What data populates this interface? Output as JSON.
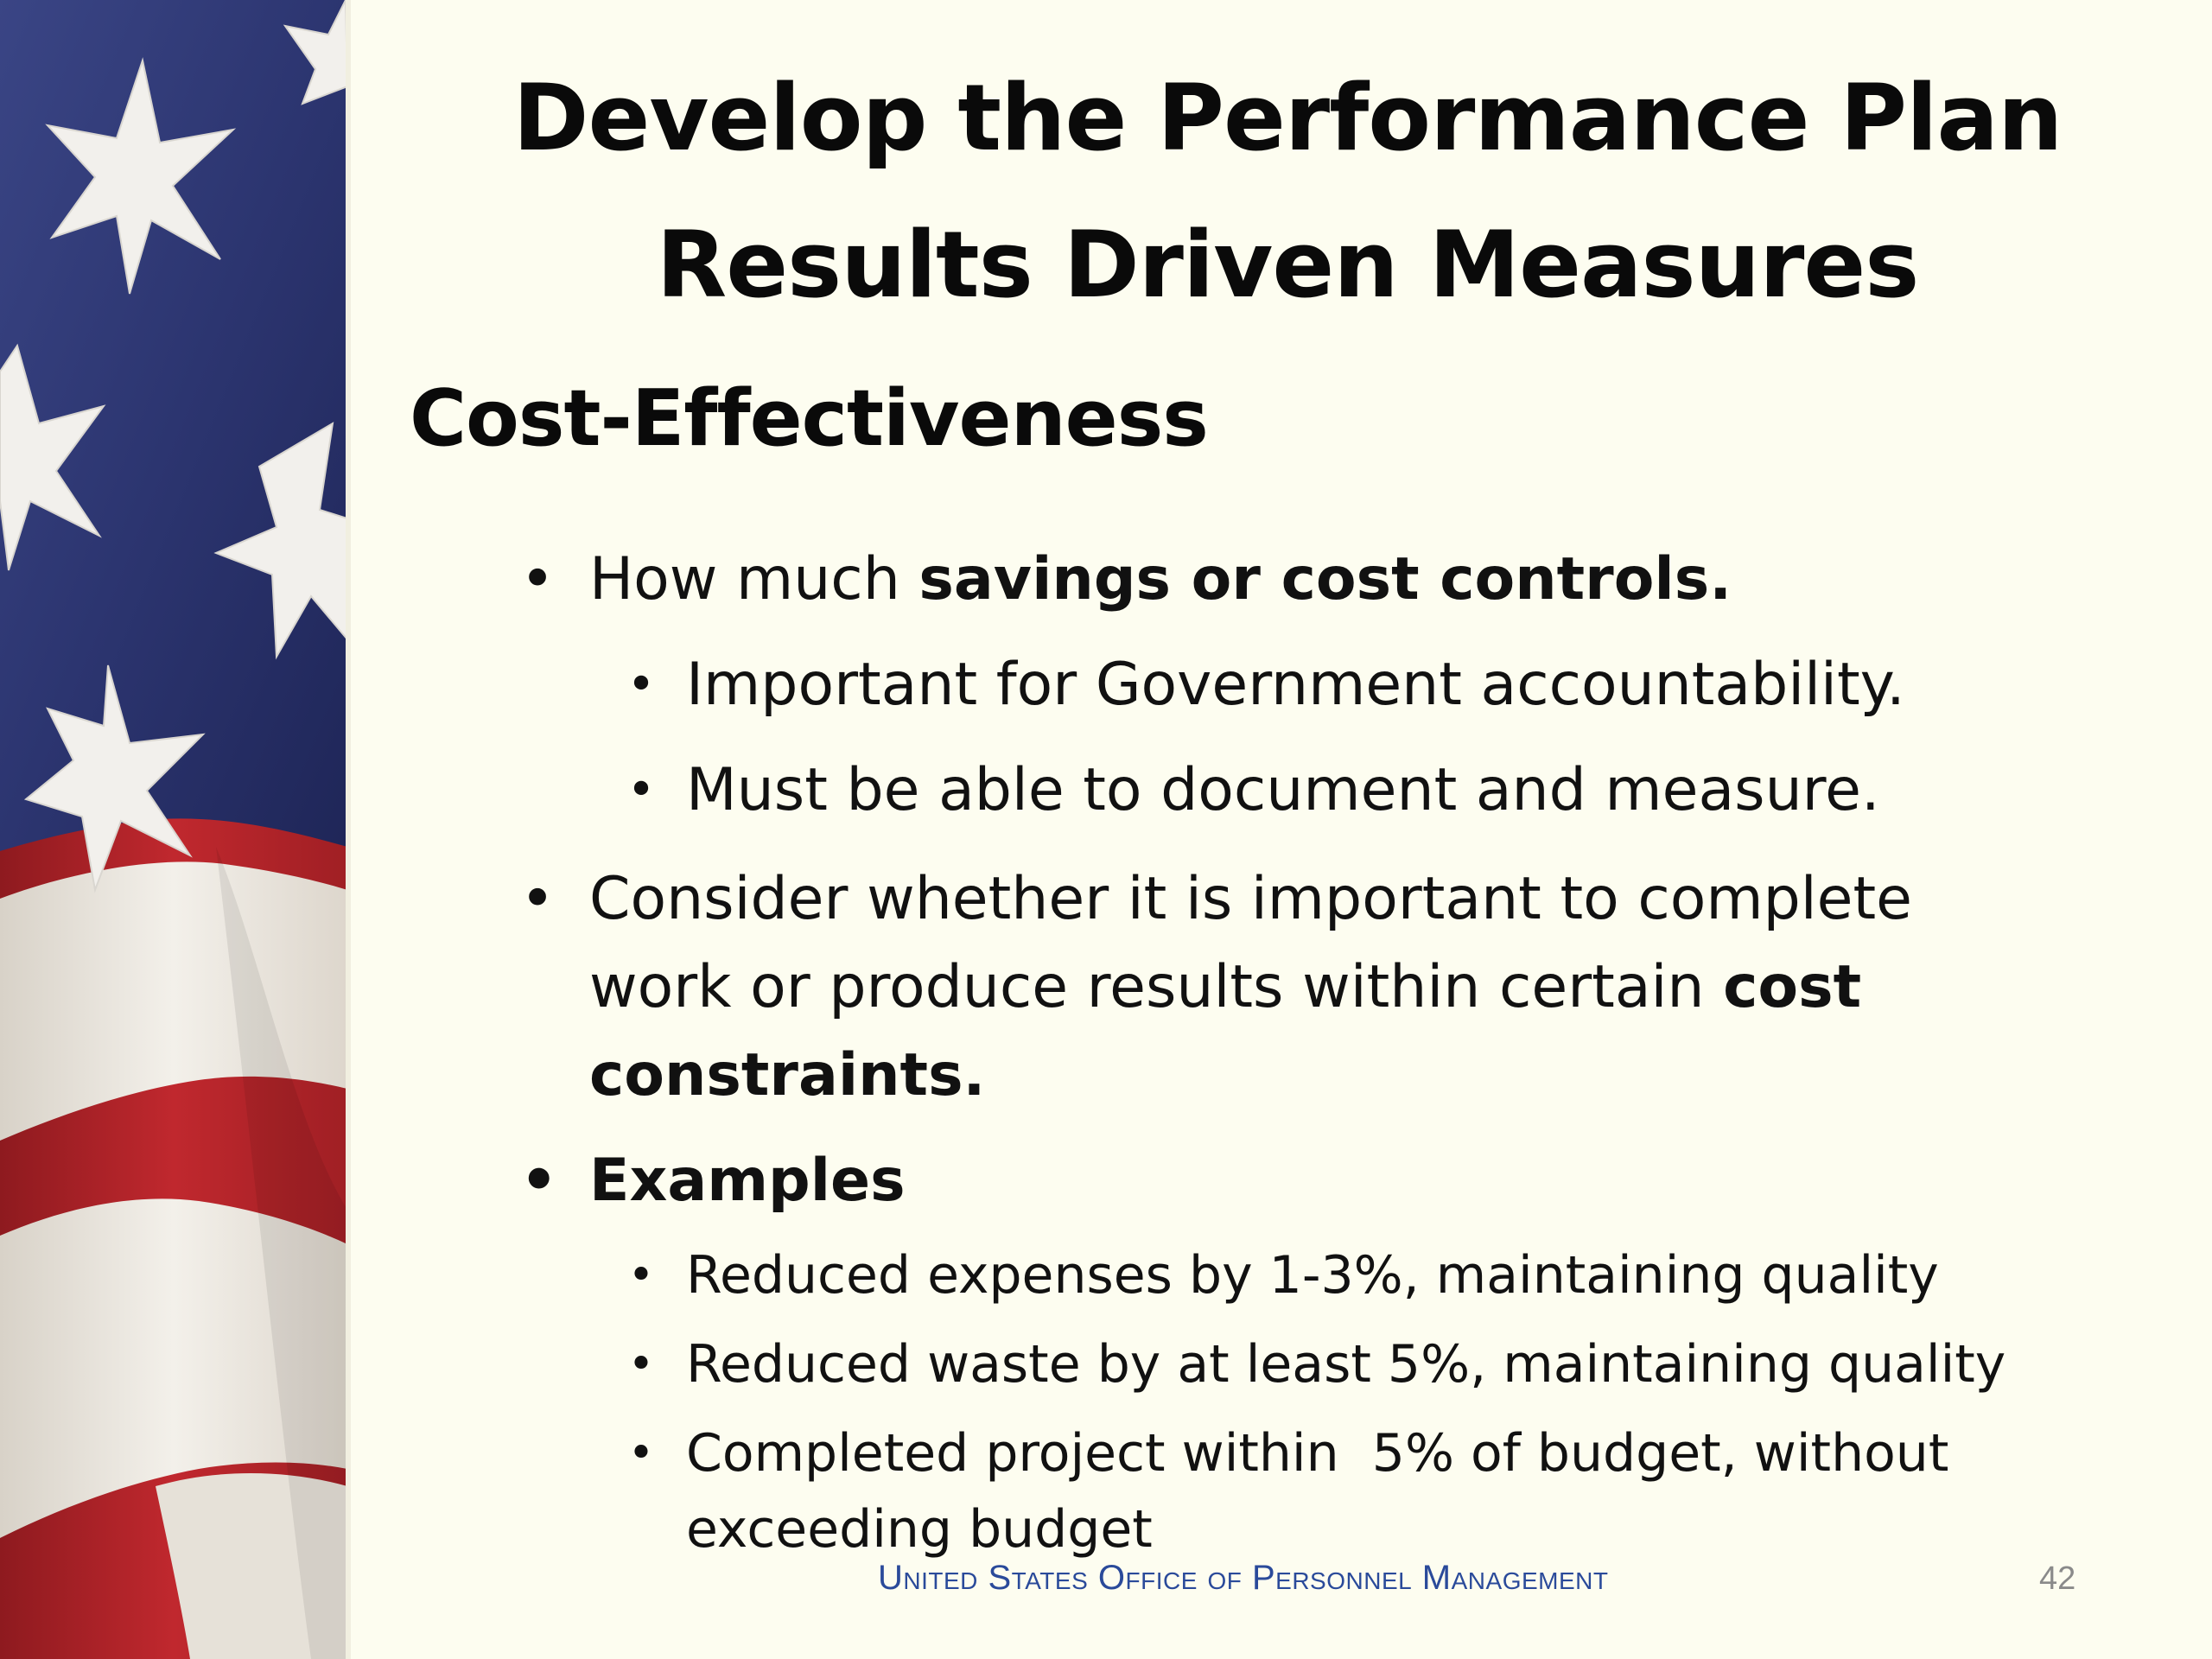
{
  "slide": {
    "title_line1": "Develop the Performance Plan",
    "title_line2": "Results Driven Measures",
    "subtitle": "Cost-Effectiveness",
    "bullets": {
      "b1_prefix": "How much ",
      "b1_bold": "savings or cost controls.",
      "b1_sub1": "Important for Government accountability.",
      "b1_sub2": "Must be able to document and measure.",
      "b2_line1": "Consider whether it is important to complete",
      "b2_line2_prefix": "work or produce results within certain ",
      "b2_line2_bold": "cost",
      "b2_line3_bold": "constraints.",
      "b3_bold": "Examples",
      "b3_sub1": "Reduced expenses by 1-3%, maintaining quality",
      "b3_sub2": "Reduced waste by at least 5%, maintaining quality",
      "b3_sub3_line1": "Completed project within  5% of budget, without",
      "b3_sub3_line2": "exceeding budget"
    },
    "footer": "United States Office of Personnel Management",
    "page_number": "42",
    "bullet_glyph": "•"
  },
  "colors": {
    "background": "#fdfdf0",
    "flag_blue": "#2c3570",
    "flag_red": "#b8242a",
    "flag_white": "#ece8e0",
    "footer_text": "#2a4a9a"
  }
}
